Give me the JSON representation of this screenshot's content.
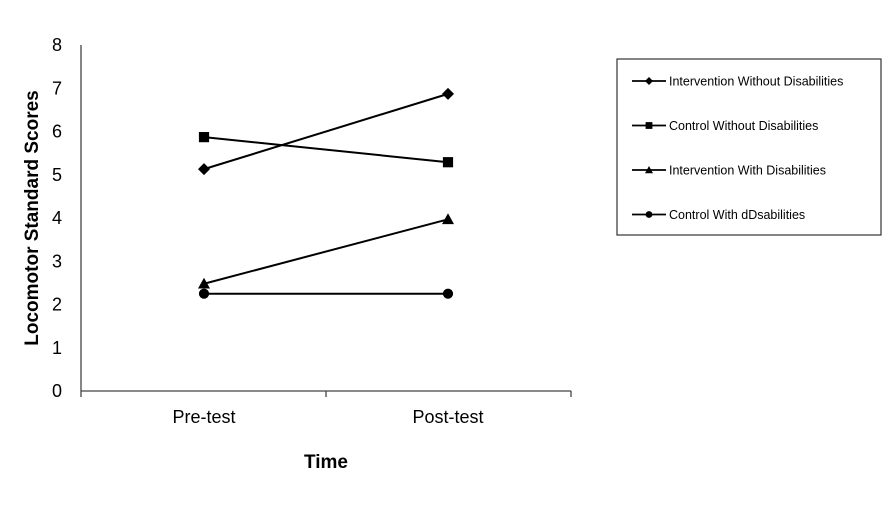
{
  "chart_data": {
    "type": "line",
    "title": "",
    "xlabel": "Time",
    "ylabel": "Locomotor Standard Scores",
    "categories": [
      "Pre-test",
      "Post-test"
    ],
    "ylim": [
      0,
      8
    ],
    "yticks": [
      0,
      1,
      2,
      3,
      4,
      5,
      6,
      7,
      8
    ],
    "grid": false,
    "legend_position": "right",
    "series": [
      {
        "name": "Intervention Without Disabilities",
        "marker": "diamond",
        "values": [
          5.13,
          6.87
        ]
      },
      {
        "name": "Control Without Disabilities",
        "marker": "square",
        "values": [
          5.87,
          5.29
        ]
      },
      {
        "name": "Intervention With Disabilities",
        "marker": "triangle",
        "values": [
          2.48,
          3.97
        ]
      },
      {
        "name": "Control With dDsabilities",
        "marker": "circle",
        "values": [
          2.25,
          2.25
        ]
      }
    ]
  }
}
